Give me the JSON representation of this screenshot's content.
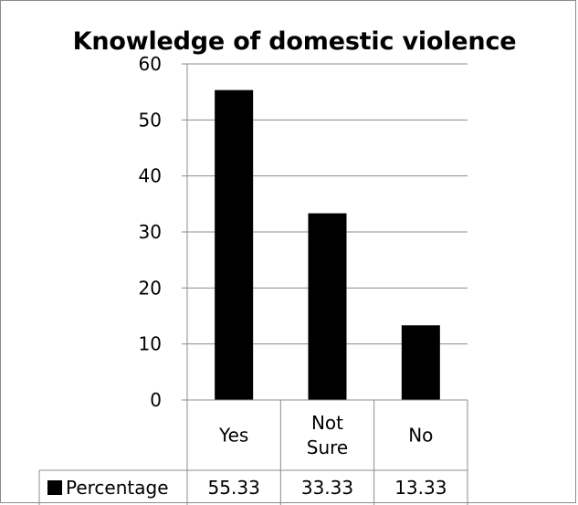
{
  "chart_data": {
    "type": "bar",
    "title": "Knowledge of domestic violence",
    "categories": [
      [
        "Yes"
      ],
      [
        "Not",
        "Sure"
      ],
      [
        "No"
      ]
    ],
    "series": [
      {
        "name": "Percentage",
        "values": [
          55.33,
          33.33,
          13.33
        ],
        "color": "#000000",
        "value_labels": [
          "55.33",
          "33.33",
          "13.33"
        ]
      }
    ],
    "ylim": [
      0,
      60
    ],
    "yticks": [
      0,
      10,
      20,
      30,
      40,
      50,
      60
    ],
    "grid": true,
    "legend": "data-table-left",
    "data_table": true
  },
  "colors": {
    "bar": "#000000",
    "grid": "#8c8c8c",
    "axis": "#8c8c8c",
    "border": "#8c8c8c"
  }
}
